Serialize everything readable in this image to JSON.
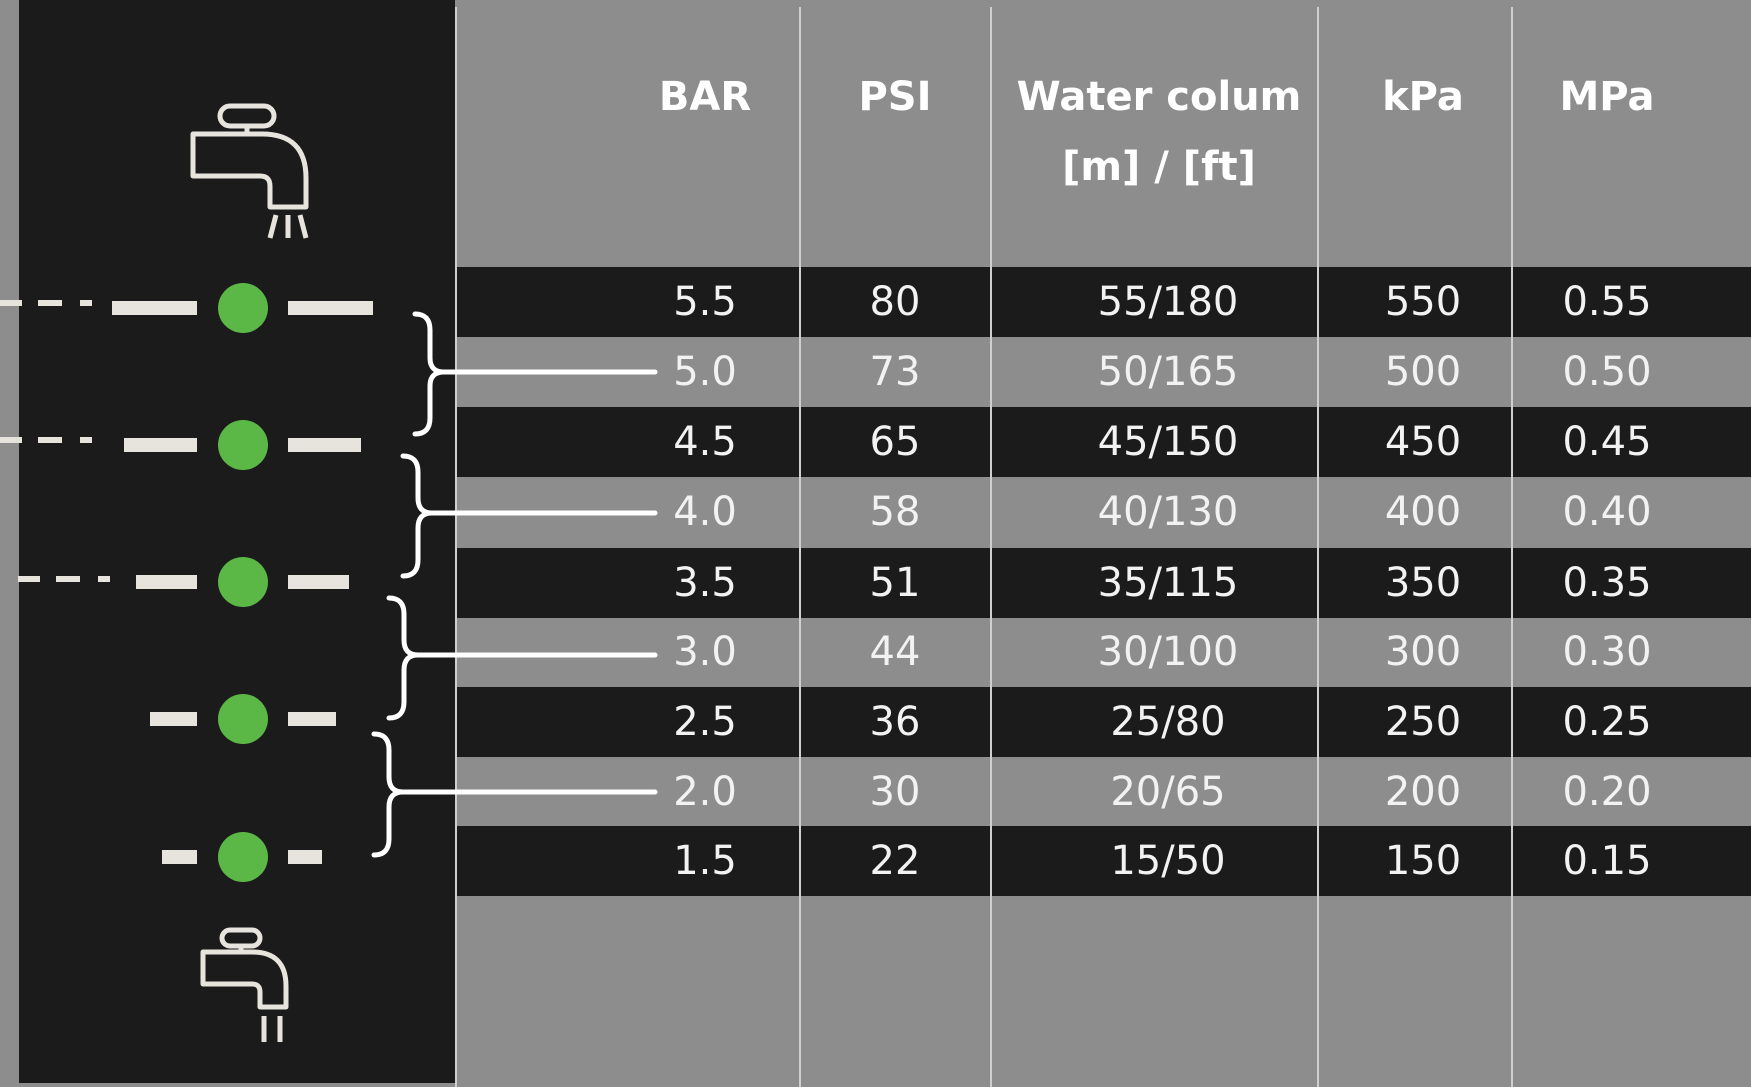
{
  "table": {
    "headers": {
      "bar": "BAR",
      "psi": "PSI",
      "water_line1": "Water colum",
      "water_line2": "[m] / [ft]",
      "kpa": "kPa",
      "mpa": "MPa"
    },
    "rows": [
      {
        "bar": "5.5",
        "psi": "80",
        "water": "55/180",
        "kpa": "550",
        "mpa": "0.55"
      },
      {
        "bar": "5.0",
        "psi": "73",
        "water": "50/165",
        "kpa": "500",
        "mpa": "0.50"
      },
      {
        "bar": "4.5",
        "psi": "65",
        "water": "45/150",
        "kpa": "450",
        "mpa": "0.45"
      },
      {
        "bar": "4.0",
        "psi": "58",
        "water": "40/130",
        "kpa": "400",
        "mpa": "0.40"
      },
      {
        "bar": "3.5",
        "psi": "51",
        "water": "35/115",
        "kpa": "350",
        "mpa": "0.35"
      },
      {
        "bar": "3.0",
        "psi": "44",
        "water": "30/100",
        "kpa": "300",
        "mpa": "0.30"
      },
      {
        "bar": "2.5",
        "psi": "36",
        "water": "25/80",
        "kpa": "250",
        "mpa": "0.25"
      },
      {
        "bar": "2.0",
        "psi": "30",
        "water": "20/65",
        "kpa": "200",
        "mpa": "0.20"
      },
      {
        "bar": "1.5",
        "psi": "22",
        "water": "15/50",
        "kpa": "150",
        "mpa": "0.15"
      }
    ]
  },
  "indicator": {
    "dot_color": "#5bb847",
    "panel_color": "#1b1b1b",
    "page_color": "#8d8d8d",
    "top_icon": "faucet-strong-flow-icon",
    "bottom_icon": "faucet-low-flow-icon"
  }
}
